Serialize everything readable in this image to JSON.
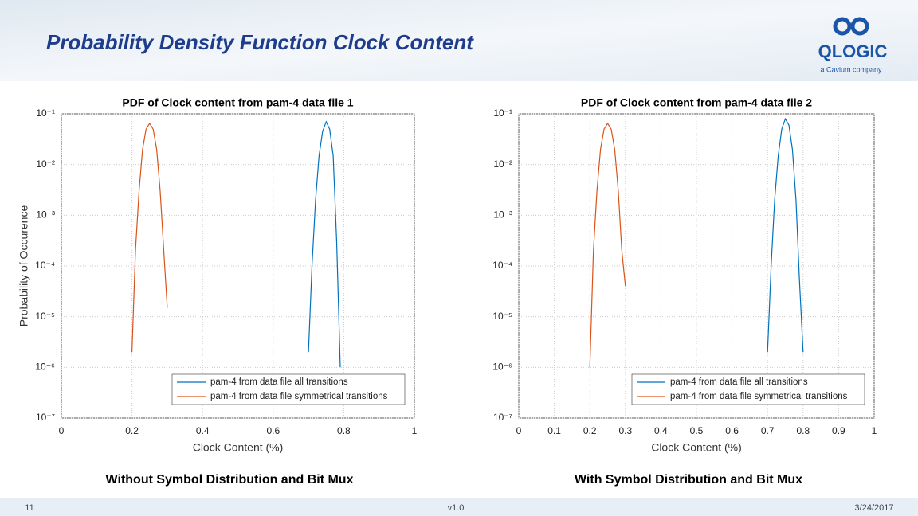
{
  "slide": {
    "title": "Probability Density Function Clock Content",
    "logo": "QLOGIC",
    "logo_sub": "a Cavium company",
    "captions": [
      "Without Symbol Distribution and Bit Mux",
      "With Symbol Distribution and Bit Mux"
    ],
    "page": "11",
    "version": "v1.0",
    "date": "3/24/2017"
  },
  "chart_data": [
    {
      "type": "line",
      "title": "PDF of Clock content from pam-4 data file 1",
      "xlabel": "Clock Content (%)",
      "ylabel": "Probability of Occurence",
      "yscale": "log",
      "grid": true,
      "legend": "lower right",
      "xlim": [
        0,
        1
      ],
      "xticks": [
        0,
        0.2,
        0.4,
        0.6,
        0.8,
        1
      ],
      "ylim": [
        1e-07,
        0.1
      ],
      "yticks": [
        {
          "value": 1e-07,
          "label": "10⁻⁷"
        },
        {
          "value": 1e-06,
          "label": "10⁻⁶"
        },
        {
          "value": 1e-05,
          "label": "10⁻⁵"
        },
        {
          "value": 0.0001,
          "label": "10⁻⁴"
        },
        {
          "value": 0.001,
          "label": "10⁻³"
        },
        {
          "value": 0.01,
          "label": "10⁻²"
        },
        {
          "value": 0.1,
          "label": "10⁻¹"
        }
      ],
      "series": [
        {
          "name": "pam-4 from data file all transitions",
          "color": "#0072bd",
          "x": [
            0.7,
            0.71,
            0.72,
            0.73,
            0.74,
            0.75,
            0.76,
            0.77,
            0.78,
            0.79
          ],
          "values": [
            2e-06,
            0.0001,
            0.002,
            0.015,
            0.045,
            0.07,
            0.05,
            0.015,
            0.0003,
            1e-06
          ]
        },
        {
          "name": "pam-4 from data file symmetrical transitions",
          "color": "#d95319",
          "x": [
            0.2,
            0.21,
            0.22,
            0.23,
            0.24,
            0.25,
            0.26,
            0.27,
            0.28,
            0.29,
            0.3
          ],
          "values": [
            2e-06,
            0.0002,
            0.003,
            0.02,
            0.05,
            0.065,
            0.05,
            0.02,
            0.003,
            0.0002,
            1.5e-05
          ]
        }
      ]
    },
    {
      "type": "line",
      "title": "PDF of Clock content from pam-4 data file 2",
      "xlabel": "Clock Content (%)",
      "yscale": "log",
      "grid": true,
      "legend": "lower right",
      "xlim": [
        0,
        1
      ],
      "xticks": [
        0,
        0.1,
        0.2,
        0.3,
        0.4,
        0.5,
        0.6,
        0.7,
        0.8,
        0.9,
        1
      ],
      "ylim": [
        1e-07,
        0.1
      ],
      "yticks": [
        {
          "value": 1e-07,
          "label": "10⁻⁷"
        },
        {
          "value": 1e-06,
          "label": "10⁻⁶"
        },
        {
          "value": 1e-05,
          "label": "10⁻⁵"
        },
        {
          "value": 0.0001,
          "label": "10⁻⁴"
        },
        {
          "value": 0.001,
          "label": "10⁻³"
        },
        {
          "value": 0.01,
          "label": "10⁻²"
        },
        {
          "value": 0.1,
          "label": "10⁻¹"
        }
      ],
      "series": [
        {
          "name": "pam-4 from data file all transitions",
          "color": "#0072bd",
          "x": [
            0.7,
            0.71,
            0.72,
            0.73,
            0.74,
            0.75,
            0.76,
            0.77,
            0.78,
            0.79,
            0.8
          ],
          "values": [
            2e-06,
            0.0001,
            0.002,
            0.015,
            0.05,
            0.08,
            0.06,
            0.02,
            0.002,
            5e-05,
            2e-06
          ]
        },
        {
          "name": "pam-4 from data file symmetrical transitions",
          "color": "#d95319",
          "x": [
            0.2,
            0.21,
            0.22,
            0.23,
            0.24,
            0.25,
            0.26,
            0.27,
            0.28,
            0.29,
            0.3
          ],
          "values": [
            1e-06,
            0.0002,
            0.003,
            0.02,
            0.05,
            0.065,
            0.05,
            0.02,
            0.003,
            0.0002,
            4e-05
          ]
        }
      ]
    }
  ]
}
